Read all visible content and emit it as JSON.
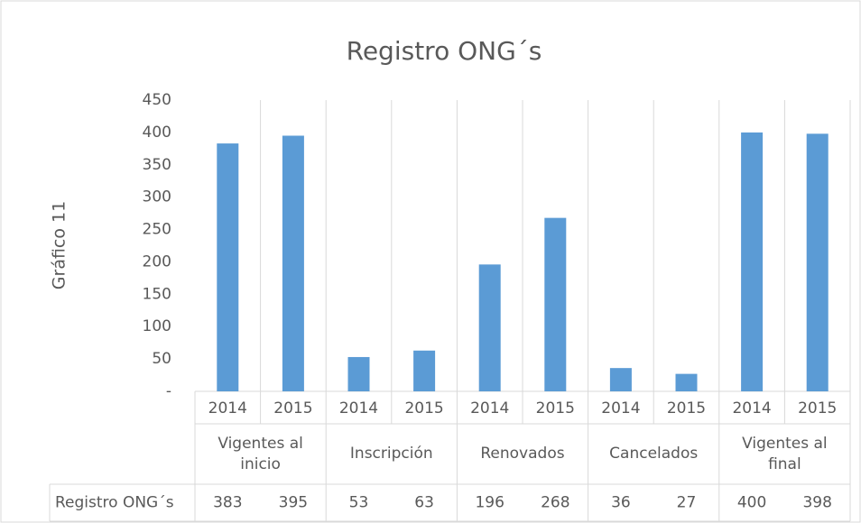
{
  "chart_data": {
    "type": "bar",
    "title": "Registro ONG´s",
    "y_label": "Gráfico 11",
    "categories": [
      "2014",
      "2015",
      "2014",
      "2015",
      "2014",
      "2015",
      "2014",
      "2015",
      "2014",
      "2015"
    ],
    "groups": [
      "Vigentes al inicio",
      "Inscripción",
      "Renovados",
      "Cancelados",
      "Vigentes al final"
    ],
    "series": [
      {
        "name": "Registro ONG´s",
        "color": "#5b9bd5",
        "values": [
          383,
          395,
          53,
          63,
          196,
          268,
          36,
          27,
          400,
          398
        ]
      }
    ],
    "ylim": [
      0,
      450
    ],
    "yticks": [
      {
        "value": 0,
        "label": "-"
      },
      50,
      100,
      150,
      200,
      250,
      300,
      350,
      400,
      450
    ],
    "data_table": true
  }
}
